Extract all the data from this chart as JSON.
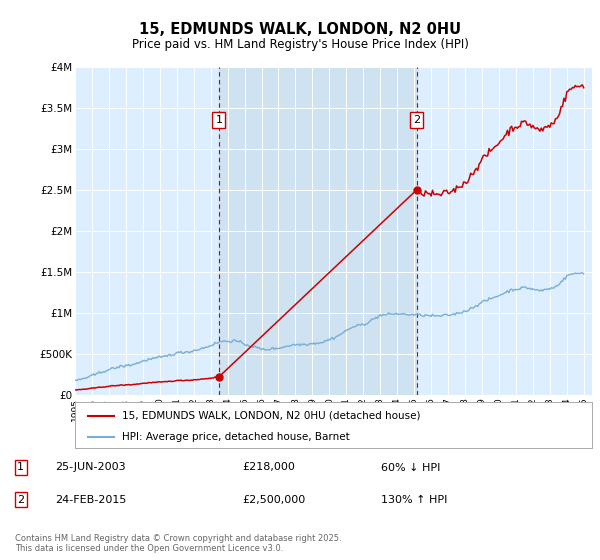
{
  "title": "15, EDMUNDS WALK, LONDON, N2 0HU",
  "subtitle": "Price paid vs. HM Land Registry's House Price Index (HPI)",
  "bg_color": "#ddeeff",
  "plot_bg_color": "#ddeeff",
  "grid_color": "#ffffff",
  "ylim": [
    0,
    4000000
  ],
  "yticks": [
    0,
    500000,
    1000000,
    1500000,
    2000000,
    2500000,
    3000000,
    3500000,
    4000000
  ],
  "ytick_labels": [
    "£0",
    "£500K",
    "£1M",
    "£1.5M",
    "£2M",
    "£2.5M",
    "£3M",
    "£3.5M",
    "£4M"
  ],
  "xlim_start": 1995.0,
  "xlim_end": 2025.5,
  "xtick_years": [
    1995,
    1996,
    1997,
    1998,
    1999,
    2000,
    2001,
    2002,
    2003,
    2004,
    2005,
    2006,
    2007,
    2008,
    2009,
    2010,
    2011,
    2012,
    2013,
    2014,
    2015,
    2016,
    2017,
    2018,
    2019,
    2020,
    2021,
    2022,
    2023,
    2024,
    2025
  ],
  "sale1_x": 2003.484,
  "sale1_y": 218000,
  "sale2_x": 2015.14,
  "sale2_y": 2500000,
  "sale_color": "#cc0000",
  "hpi_color": "#7aadd4",
  "shade_color": "#cce0f0",
  "legend_sale": "15, EDMUNDS WALK, LONDON, N2 0HU (detached house)",
  "legend_hpi": "HPI: Average price, detached house, Barnet",
  "footer": "Contains HM Land Registry data © Crown copyright and database right 2025.\nThis data is licensed under the Open Government Licence v3.0."
}
